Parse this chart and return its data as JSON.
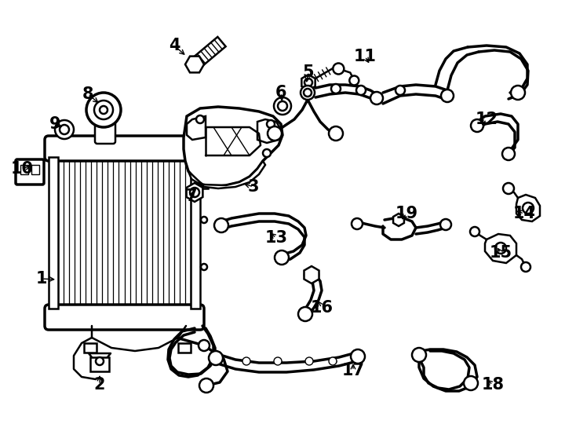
{
  "background_color": "#ffffff",
  "line_color": "#000000",
  "lw": 1.8,
  "lw_thick": 2.5,
  "lw_thin": 1.0,
  "labels": {
    "1": [
      53,
      355,
      73,
      356
    ],
    "2": [
      127,
      490,
      127,
      475
    ],
    "3": [
      323,
      238,
      308,
      233
    ],
    "4": [
      222,
      58,
      238,
      72
    ],
    "5": [
      393,
      92,
      390,
      108
    ],
    "6": [
      358,
      118,
      360,
      132
    ],
    "7": [
      244,
      250,
      248,
      240
    ],
    "8": [
      112,
      120,
      128,
      133
    ],
    "9": [
      70,
      158,
      82,
      163
    ],
    "10": [
      28,
      215,
      42,
      210
    ],
    "11": [
      465,
      72,
      472,
      83
    ],
    "12": [
      620,
      152,
      612,
      162
    ],
    "13": [
      352,
      303,
      342,
      295
    ],
    "14": [
      668,
      272,
      655,
      268
    ],
    "15": [
      638,
      322,
      632,
      313
    ],
    "16": [
      410,
      392,
      403,
      380
    ],
    "17": [
      450,
      472,
      450,
      460
    ],
    "18": [
      628,
      490,
      618,
      482
    ],
    "19": [
      518,
      272,
      510,
      282
    ]
  }
}
